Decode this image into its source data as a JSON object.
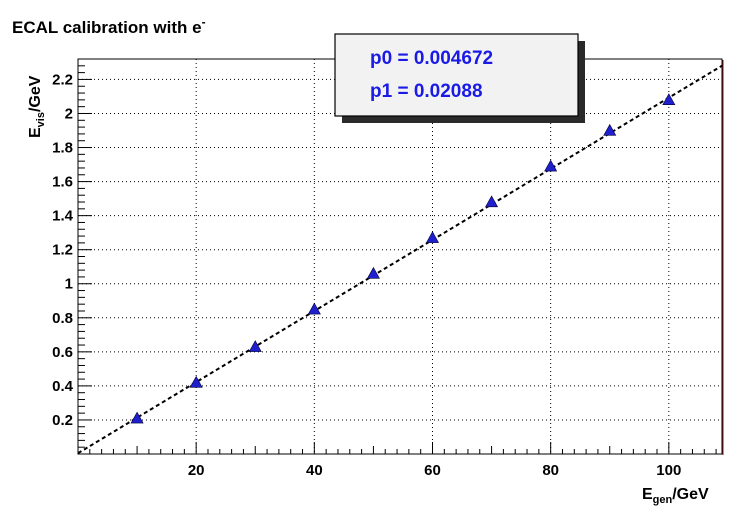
{
  "chart_data": {
    "type": "scatter",
    "title": {
      "main": "ECAL calibration with e",
      "sup": "-"
    },
    "xlabel": {
      "main": "E",
      "sub": "gen",
      "rest": "/GeV"
    },
    "ylabel": {
      "main": "E",
      "sub": "vis",
      "rest": "/GeV"
    },
    "xlim": [
      0,
      109
    ],
    "ylim": [
      0,
      2.32
    ],
    "x_ticks": [
      20,
      40,
      60,
      80,
      100
    ],
    "y_ticks": [
      0.2,
      0.4,
      0.6,
      0.8,
      1,
      1.2,
      1.4,
      1.6,
      1.8,
      2,
      2.2
    ],
    "x_tick_labels": [
      "20",
      "40",
      "60",
      "80",
      "100"
    ],
    "y_tick_labels": [
      "0.2",
      "0.4",
      "0.6",
      "0.8",
      "1",
      "1.2",
      "1.4",
      "1.6",
      "1.8",
      "2",
      "2.2"
    ],
    "grid": true,
    "series": [
      {
        "marker": "triangle",
        "color": "#1f1fcf",
        "x": [
          10,
          20,
          30,
          40,
          50,
          60,
          70,
          80,
          90,
          100
        ],
        "y": [
          0.21,
          0.42,
          0.63,
          0.85,
          1.06,
          1.27,
          1.48,
          1.69,
          1.9,
          2.08
        ]
      }
    ],
    "fit": {
      "color": "#000000",
      "style": "dashed",
      "p0": 0.004672,
      "p1": 0.02088
    },
    "stats_box": {
      "line1": "p0 = 0.004672",
      "line2": "p1 = 0.02088"
    }
  }
}
